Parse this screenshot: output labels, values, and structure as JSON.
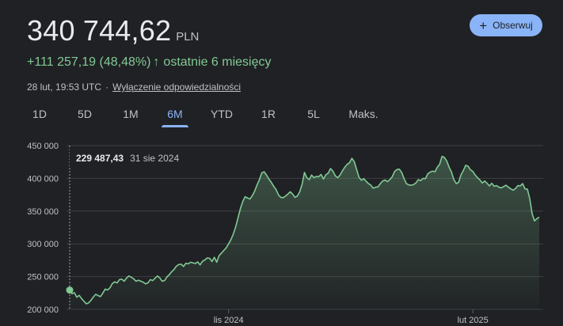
{
  "quote": {
    "price": "340 744,62",
    "currency": "PLN",
    "change": "+111 257,19 (48,48%)",
    "change_arrow": "↑",
    "period_text": "ostatnie 6 miesięcy",
    "timestamp": "28 lut, 19:53 UTC",
    "separator": "·",
    "disclaimer": "Wyłączenie odpowiedzialności"
  },
  "follow_button": {
    "icon": "plus-icon",
    "label": "Obserwuj"
  },
  "tabs": [
    {
      "label": "1D",
      "active": false
    },
    {
      "label": "5D",
      "active": false
    },
    {
      "label": "1M",
      "active": false
    },
    {
      "label": "6M",
      "active": true
    },
    {
      "label": "YTD",
      "active": false
    },
    {
      "label": "1R",
      "active": false
    },
    {
      "label": "5L",
      "active": false
    },
    {
      "label": "Maks.",
      "active": false
    }
  ],
  "tooltip": {
    "value": "229 487,43",
    "date": "31 sie 2024"
  },
  "colors": {
    "background": "#202124",
    "accent": "#8ab4f8",
    "positive": "#81c995",
    "text": "#e8eaed",
    "muted": "#bdc1c6",
    "grid": "#3c4043"
  },
  "chart_data": {
    "type": "area",
    "title": "",
    "xlabel": "",
    "ylabel": "",
    "ylim": [
      200000,
      450000
    ],
    "yticks": [
      200000,
      250000,
      300000,
      350000,
      400000,
      450000
    ],
    "ytick_labels": [
      "200 000",
      "250 000",
      "300 000",
      "350 000",
      "400 000",
      "450 000"
    ],
    "xtick_labels": [
      "lis 2024",
      "lut 2025"
    ],
    "grid": true,
    "series": [
      {
        "values": [
          229487,
          224000,
          225500,
          218500,
          221500,
          216500,
          212500,
          208500,
          210000,
          214000,
          219000,
          223000,
          221000,
          219500,
          225000,
          231000,
          229500,
          233000,
          239500,
          242000,
          240500,
          245500,
          246000,
          243000,
          248000,
          251000,
          249000,
          246500,
          243000,
          244500,
          243000,
          241500,
          239000,
          240500,
          245500,
          244000,
          247500,
          251000,
          248000,
          243000,
          244000,
          249500,
          253000,
          257500,
          261000,
          266000,
          268500,
          269000,
          265500,
          270500,
          269500,
          272000,
          271000,
          270000,
          272500,
          268000,
          273500,
          275500,
          278500,
          278000,
          273000,
          279500,
          272000,
          282000,
          286000,
          290000,
          294000,
          300000,
          306500,
          315000,
          326000,
          340000,
          354000,
          365000,
          372000,
          370000,
          368500,
          373500,
          380500,
          390000,
          398000,
          408500,
          410000,
          405000,
          399000,
          394000,
          388000,
          383000,
          375000,
          371000,
          370500,
          373000,
          376000,
          379500,
          376000,
          371000,
          373000,
          379500,
          391000,
          409000,
          401000,
          398000,
          405000,
          401000,
          403000,
          402500,
          406000,
          399000,
          405500,
          408000,
          415000,
          411000,
          404000,
          401000,
          405000,
          411500,
          417000,
          421500,
          424000,
          430500,
          425500,
          413500,
          401500,
          397000,
          399500,
          395500,
          392000,
          389500,
          385000,
          386500,
          387000,
          392000,
          396000,
          397500,
          395000,
          398000,
          402500,
          410500,
          413500,
          414000,
          409000,
          399500,
          392000,
          390000,
          389500,
          390500,
          393000,
          398000,
          396500,
          400000,
          399500,
          407000,
          409500,
          411000,
          410000,
          417000,
          421500,
          433500,
          432000,
          426500,
          417000,
          409500,
          398000,
          392000,
          394000,
          405500,
          412000,
          420000,
          418500,
          413000,
          410500,
          405000,
          401000,
          397500,
          393000,
          396000,
          392500,
          388500,
          392500,
          388000,
          389000,
          386500,
          385500,
          387500,
          389500,
          386500,
          384000,
          382000,
          384500,
          389000,
          388500,
          392000,
          384000,
          383500,
          369000,
          346000,
          335000,
          338500,
          340745
        ]
      }
    ]
  }
}
